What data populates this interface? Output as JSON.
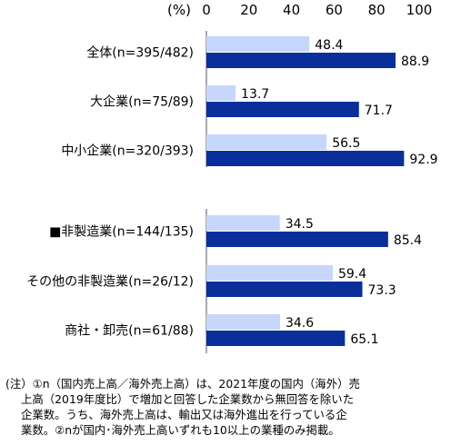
{
  "chart_data": {
    "type": "bar",
    "orientation": "horizontal",
    "unit_label": "(%)",
    "xlim": [
      0,
      100
    ],
    "x_ticks": [
      "0",
      "20",
      "40",
      "60",
      "80",
      "100"
    ],
    "categories": [
      "全体(n=395/482)",
      "大企業(n=75/89)",
      "中小企業(n=320/393)",
      "■非製造業(n=144/135)",
      "その他の非製造業(n=26/12)",
      "商社・卸売(n=61/88)"
    ],
    "series": [
      {
        "values": [
          48.4,
          13.7,
          56.5,
          34.5,
          59.4,
          34.6
        ],
        "color": "#c6d7fb"
      },
      {
        "values": [
          88.9,
          71.7,
          92.9,
          85.4,
          73.3,
          65.1
        ],
        "color": "#0a2f9b"
      }
    ],
    "grid": false,
    "legend": "none"
  },
  "note": {
    "line1": "(注）①n（国内売上高／海外売上高）は、2021年度の国内（海外）売",
    "line2": "上高（2019年度比）で増加と回答した企業数から無回答を除いた",
    "line3": "企業数。うち、海外売上高は、輸出又は海外進出を行っている企",
    "line4": "業数。②nが国内･海外売上高いずれも10以上の業種のみ掲載。"
  }
}
